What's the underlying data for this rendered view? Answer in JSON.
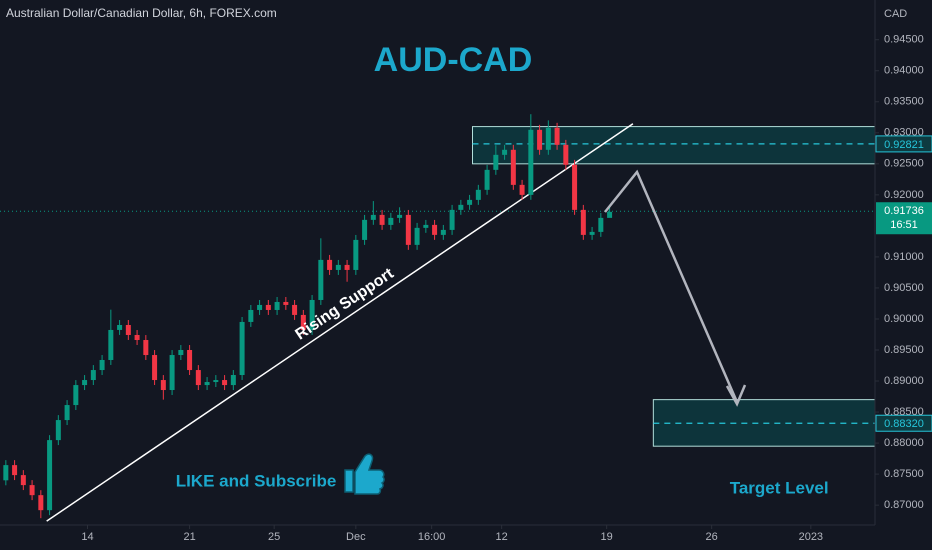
{
  "chart_data": {
    "type": "candlestick",
    "title": "AUD-CAD",
    "subtitle": "Australian Dollar/Canadian Dollar, 6h, FOREX.com",
    "y_axis_label": "CAD",
    "up_color": "#089981",
    "down_color": "#f23645",
    "x": [
      1,
      2.5,
      4,
      5.5,
      7,
      8.5,
      10,
      11.5,
      13,
      14.5,
      16,
      17.5,
      19,
      20.5,
      22,
      23.5,
      25,
      26.5,
      28,
      29.5,
      31,
      32.5,
      34,
      35.5,
      37,
      38.5,
      40,
      41.5,
      43,
      44.5,
      46,
      47.5,
      49,
      50.5,
      52,
      53.5,
      55,
      56.5,
      58,
      59.5,
      61,
      62.5,
      64,
      65.5,
      67,
      68.5,
      70,
      71.5,
      73,
      74.5,
      76,
      77.5,
      79,
      80.5,
      82,
      83.5,
      85,
      86.5,
      88,
      89.5,
      91,
      92.5,
      94,
      95.5,
      97,
      98.5,
      100,
      101.5,
      103,
      104.5
    ],
    "open": [
      0.874,
      0.87645,
      0.87484,
      0.87323,
      0.87161,
      0.86919,
      0.88048,
      0.88371,
      0.88613,
      0.88935,
      0.89016,
      0.89177,
      0.89339,
      0.89823,
      0.89903,
      0.89742,
      0.89661,
      0.89419,
      0.89016,
      0.88855,
      0.89419,
      0.895,
      0.89177,
      0.88935,
      0.88984,
      0.89016,
      0.88935,
      0.89097,
      0.89952,
      0.90145,
      0.90226,
      0.90145,
      0.90274,
      0.90226,
      0.90065,
      0.89823,
      0.90306,
      0.90952,
      0.9079,
      0.90871,
      0.9079,
      0.91274,
      0.91597,
      0.91677,
      0.91516,
      0.91629,
      0.91677,
      0.91194,
      0.91468,
      0.91516,
      0.91355,
      0.91435,
      0.91758,
      0.91839,
      0.91919,
      0.92081,
      0.92403,
      0.92645,
      0.92726,
      0.92161,
      0.92,
      0.93048,
      0.92726,
      0.93081,
      0.92806,
      0.92484,
      0.91758,
      0.91355,
      0.91403,
      0.91629
    ],
    "high": [
      0.87725,
      0.87725,
      0.87564,
      0.87403,
      0.87241,
      0.88128,
      0.88451,
      0.88693,
      0.89015,
      0.89096,
      0.89257,
      0.89419,
      0.9015,
      0.89983,
      0.89983,
      0.89822,
      0.89741,
      0.89499,
      0.89096,
      0.89499,
      0.8958,
      0.8958,
      0.89257,
      0.89064,
      0.89096,
      0.89096,
      0.89177,
      0.90032,
      0.90225,
      0.90306,
      0.90306,
      0.90354,
      0.90354,
      0.90306,
      0.90145,
      0.90386,
      0.913,
      0.91032,
      0.90951,
      0.90951,
      0.91354,
      0.91677,
      0.919,
      0.91757,
      0.91709,
      0.918,
      0.91757,
      0.91548,
      0.91596,
      0.91596,
      0.91515,
      0.91838,
      0.91919,
      0.91999,
      0.92161,
      0.92483,
      0.928,
      0.92806,
      0.92806,
      0.92241,
      0.933,
      0.93128,
      0.932,
      0.93161,
      0.92886,
      0.92564,
      0.91838,
      0.91483,
      0.91709,
      0.91806
    ],
    "low": [
      0.8732,
      0.87404,
      0.87243,
      0.87081,
      0.8679,
      0.86839,
      0.87968,
      0.88291,
      0.88533,
      0.88855,
      0.88936,
      0.89097,
      0.89259,
      0.89743,
      0.89662,
      0.89581,
      0.89339,
      0.88936,
      0.887,
      0.88775,
      0.89339,
      0.89097,
      0.88855,
      0.88855,
      0.88904,
      0.88855,
      0.88855,
      0.89017,
      0.89872,
      0.90065,
      0.90065,
      0.90065,
      0.90146,
      0.89985,
      0.89743,
      0.89743,
      0.90226,
      0.9071,
      0.9071,
      0.906,
      0.9071,
      0.91194,
      0.91517,
      0.91436,
      0.91436,
      0.91549,
      0.91114,
      0.91114,
      0.91388,
      0.91275,
      0.91275,
      0.91355,
      0.91678,
      0.91759,
      0.91839,
      0.92001,
      0.92323,
      0.92565,
      0.92081,
      0.9192,
      0.9192,
      0.92646,
      0.92646,
      0.92726,
      0.92404,
      0.91678,
      0.91275,
      0.91275,
      0.91323,
      0.91646
    ],
    "close": [
      0.87645,
      0.87484,
      0.87323,
      0.87161,
      0.86919,
      0.88048,
      0.88371,
      0.88613,
      0.88935,
      0.89016,
      0.89177,
      0.89339,
      0.89823,
      0.89903,
      0.89742,
      0.89661,
      0.89419,
      0.89016,
      0.88855,
      0.89419,
      0.895,
      0.89177,
      0.88935,
      0.88984,
      0.89016,
      0.88935,
      0.89097,
      0.89952,
      0.90145,
      0.90226,
      0.90145,
      0.90274,
      0.90226,
      0.90065,
      0.89823,
      0.90306,
      0.90952,
      0.9079,
      0.90871,
      0.9079,
      0.91274,
      0.91597,
      0.91677,
      0.91516,
      0.91629,
      0.91677,
      0.91194,
      0.91468,
      0.91516,
      0.91355,
      0.91435,
      0.91758,
      0.91839,
      0.91919,
      0.92081,
      0.92403,
      0.92645,
      0.92726,
      0.92161,
      0.92,
      0.93048,
      0.92726,
      0.93081,
      0.92806,
      0.92484,
      0.91758,
      0.91355,
      0.91403,
      0.91629,
      0.91726
    ],
    "xlim": [
      0,
      150
    ],
    "xticks": [
      {
        "value": 15,
        "label": "14"
      },
      {
        "value": 32.5,
        "label": "21"
      },
      {
        "value": 47,
        "label": "25"
      },
      {
        "value": 61,
        "label": "Dec"
      },
      {
        "value": 74,
        "label": "16:00"
      },
      {
        "value": 86,
        "label": "12"
      },
      {
        "value": 104,
        "label": "19"
      },
      {
        "value": 122,
        "label": "26"
      },
      {
        "value": 139,
        "label": "2023"
      }
    ],
    "ylim": [
      0.8668,
      0.9514
    ],
    "yticks": [
      {
        "value": 0.945,
        "label": "0.94500"
      },
      {
        "value": 0.94,
        "label": "0.94000"
      },
      {
        "value": 0.935,
        "label": "0.93500"
      },
      {
        "value": 0.93,
        "label": "0.93000"
      },
      {
        "value": 0.925,
        "label": "0.92500"
      },
      {
        "value": 0.92,
        "label": "0.92000"
      },
      {
        "value": 0.91,
        "label": "0.91000"
      },
      {
        "value": 0.905,
        "label": "0.90500"
      },
      {
        "value": 0.9,
        "label": "0.90000"
      },
      {
        "value": 0.895,
        "label": "0.89500"
      },
      {
        "value": 0.89,
        "label": "0.89000"
      },
      {
        "value": 0.885,
        "label": "0.88500"
      },
      {
        "value": 0.88,
        "label": "0.88000"
      },
      {
        "value": 0.875,
        "label": "0.87500"
      },
      {
        "value": 0.87,
        "label": "0.87000"
      }
    ],
    "last_price": 0.91736,
    "countdown": "16:51",
    "zones": [
      {
        "x_start": 81,
        "ymin": 0.925,
        "ymax": 0.931,
        "mid": 0.92821
      },
      {
        "x_start": 112,
        "ymin": 0.8795,
        "ymax": 0.887,
        "mid": 0.8832,
        "mid_label": "0.88320",
        "label": "Target Level"
      }
    ],
    "trendline": {
      "label": "Rising Support",
      "x": [
        8,
        108.5
      ],
      "y": [
        0.86742,
        0.93145
      ]
    },
    "annotations": [
      "LIKE and Subscribe"
    ]
  }
}
